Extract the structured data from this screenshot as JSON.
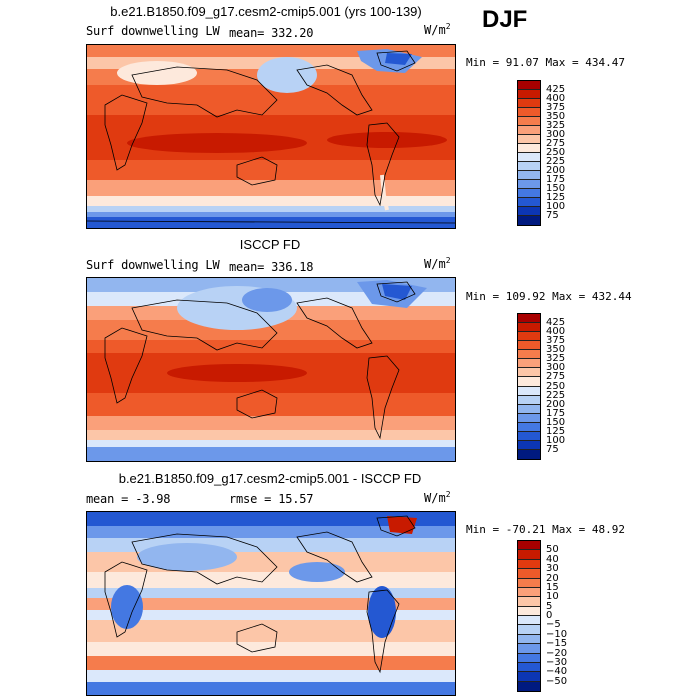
{
  "season": "DJF",
  "panels": [
    {
      "title": "b.e21.B1850.f09_g17.cesm2-cmip5.001 (yrs 100-139)",
      "variable": "Surf downwelling LW",
      "stat_label": "mean=",
      "stat_value": "332.20",
      "units": "W/m",
      "units_exp": "2",
      "min_label": "Min =",
      "min": "91.07",
      "max_label": "Max =",
      "max": "434.47",
      "levels": [
        "425",
        "400",
        "375",
        "350",
        "325",
        "300",
        "275",
        "250",
        "225",
        "200",
        "175",
        "150",
        "125",
        "100",
        "75"
      ],
      "colors": [
        "#a80000",
        "#c81a00",
        "#e03a10",
        "#ee5a2a",
        "#f57c4c",
        "#faa07a",
        "#fcc6a8",
        "#fde9dc",
        "#dbe8fb",
        "#b8d2f5",
        "#92b6ef",
        "#6c98ea",
        "#4478e2",
        "#2458d2",
        "#0c36b4",
        "#001a80"
      ],
      "kind": "lw"
    },
    {
      "title": "ISCCP FD",
      "variable": "Surf downwelling LW",
      "stat_label": "mean=",
      "stat_value": "336.18",
      "units": "W/m",
      "units_exp": "2",
      "min_label": "Min =",
      "min": "109.92",
      "max_label": "Max =",
      "max": "432.44",
      "levels": [
        "425",
        "400",
        "375",
        "350",
        "325",
        "300",
        "275",
        "250",
        "225",
        "200",
        "175",
        "150",
        "125",
        "100",
        "75"
      ],
      "colors": [
        "#a80000",
        "#c81a00",
        "#e03a10",
        "#ee5a2a",
        "#f57c4c",
        "#faa07a",
        "#fcc6a8",
        "#fde9dc",
        "#dbe8fb",
        "#b8d2f5",
        "#92b6ef",
        "#6c98ea",
        "#4478e2",
        "#2458d2",
        "#0c36b4",
        "#001a80"
      ],
      "kind": "lw2"
    },
    {
      "title": "b.e21.B1850.f09_g17.cesm2-cmip5.001 - ISCCP FD",
      "stat_label": "mean =",
      "stat_value": "-3.98",
      "rmse_label": "rmse =",
      "rmse_value": "15.57",
      "units": "W/m",
      "units_exp": "2",
      "min_label": "Min =",
      "min": "-70.21",
      "max_label": "Max =",
      "max": "48.92",
      "levels": [
        "50",
        "40",
        "30",
        "20",
        "15",
        "10",
        "5",
        "0",
        "−5",
        "−10",
        "−15",
        "−20",
        "−30",
        "−40",
        "−50"
      ],
      "colors": [
        "#a80000",
        "#c81a00",
        "#e03a10",
        "#ee5a2a",
        "#f57c4c",
        "#faa07a",
        "#fcc6a8",
        "#fde9dc",
        "#dbe8fb",
        "#b8d2f5",
        "#92b6ef",
        "#6c98ea",
        "#4478e2",
        "#2458d2",
        "#0c36b4",
        "#001a80"
      ],
      "kind": "diff"
    }
  ]
}
